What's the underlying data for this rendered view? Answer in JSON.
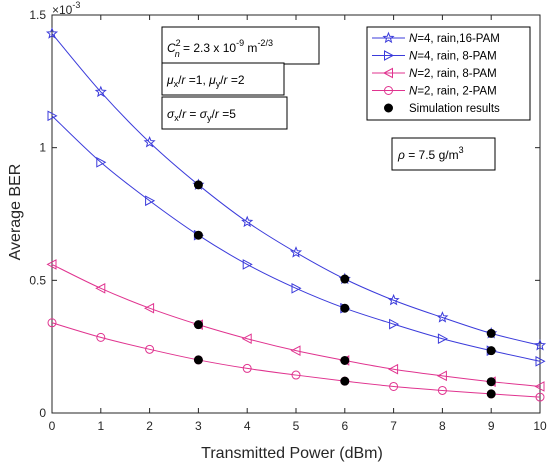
{
  "chart_data": {
    "type": "line",
    "xlabel": "Transmitted Power (dBm)",
    "ylabel": "Average BER",
    "y_exponent_label": "× 10^-3",
    "xlim": [
      0,
      10
    ],
    "ylim": [
      0,
      1.5
    ],
    "y_scale_factor": 0.001,
    "x_ticks": [
      0,
      1,
      2,
      3,
      4,
      5,
      6,
      7,
      8,
      9,
      10
    ],
    "y_ticks": [
      0,
      0.5,
      1,
      1.5
    ],
    "y_tick_labels": [
      "0",
      "0.5",
      "1",
      "1.5"
    ],
    "series": [
      {
        "name": "N=4, rain,16-PAM",
        "name_italic": "N",
        "name_rest": "=4, rain,16-PAM",
        "color": "#3b3bdb",
        "marker": "star",
        "x": [
          0,
          1,
          2,
          3,
          4,
          5,
          6,
          7,
          8,
          9,
          10
        ],
        "values": [
          1.43,
          1.21,
          1.02,
          0.86,
          0.72,
          0.605,
          0.505,
          0.425,
          0.36,
          0.3,
          0.255
        ]
      },
      {
        "name": "N=4, rain, 8-PAM",
        "name_italic": "N",
        "name_rest": "=4, rain,  8-PAM",
        "color": "#3b3bdb",
        "marker": "triangle-right",
        "x": [
          0,
          1,
          2,
          3,
          4,
          5,
          6,
          7,
          8,
          9,
          10
        ],
        "values": [
          1.12,
          0.945,
          0.8,
          0.67,
          0.56,
          0.47,
          0.395,
          0.335,
          0.28,
          0.235,
          0.195
        ]
      },
      {
        "name": "N=2, rain, 8-PAM",
        "name_italic": "N",
        "name_rest": "=2,  rain,  8-PAM",
        "color": "#e0338f",
        "marker": "triangle-left",
        "x": [
          0,
          1,
          2,
          3,
          4,
          5,
          6,
          7,
          8,
          9,
          10
        ],
        "values": [
          0.56,
          0.47,
          0.395,
          0.333,
          0.28,
          0.235,
          0.198,
          0.165,
          0.14,
          0.118,
          0.1
        ]
      },
      {
        "name": "N=2, rain, 2-PAM",
        "name_italic": "N",
        "name_rest": "=2,  rain,  2-PAM",
        "color": "#e0338f",
        "marker": "circle",
        "x": [
          0,
          1,
          2,
          3,
          4,
          5,
          6,
          7,
          8,
          9,
          10
        ],
        "values": [
          0.34,
          0.285,
          0.24,
          0.2,
          0.168,
          0.143,
          0.12,
          0.1,
          0.085,
          0.072,
          0.06
        ]
      }
    ],
    "simulation": {
      "name": "Simulation results",
      "color": "#000000",
      "points": [
        {
          "x": 3,
          "y": 0.86
        },
        {
          "x": 6,
          "y": 0.505
        },
        {
          "x": 9,
          "y": 0.3
        },
        {
          "x": 3,
          "y": 0.67
        },
        {
          "x": 6,
          "y": 0.395
        },
        {
          "x": 9,
          "y": 0.235
        },
        {
          "x": 3,
          "y": 0.333
        },
        {
          "x": 6,
          "y": 0.198
        },
        {
          "x": 9,
          "y": 0.118
        },
        {
          "x": 3,
          "y": 0.2
        },
        {
          "x": 6,
          "y": 0.12
        },
        {
          "x": 9,
          "y": 0.072
        }
      ]
    },
    "annotations": {
      "cn2": "C_n^2 = 2.3 x 10^-9 m^-2/3",
      "mu": "μ_x/r =1, μ_y/r =2",
      "sigma": "σ_x/r = σ_y/r =5",
      "rho": "ρ = 7.5 g/m^3"
    },
    "legend_position": "top-right",
    "grid": false
  }
}
